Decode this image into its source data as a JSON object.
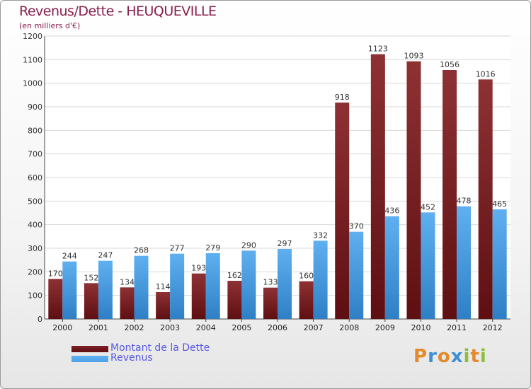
{
  "colors": {
    "dette": "#7d2226",
    "revenus": "#4ea2e6",
    "title": "#8a1f4d",
    "legend_text": "#5a5ae6"
  },
  "logo": {
    "text": "Proxiti",
    "letter_colors": [
      "#e58a2b",
      "#3f8fd4",
      "#e58a2b",
      "#3f8fd4",
      "#8dbd3d",
      "#e58a2b",
      "#8dbd3d"
    ]
  },
  "chart_data": {
    "type": "bar",
    "title": "Revenus/Dette - HEUQUEVILLE",
    "subtitle": "(en milliers d'€)",
    "xlabel": "",
    "ylabel": "",
    "ylim": [
      0,
      1200
    ],
    "yticks": [
      0,
      100,
      200,
      300,
      400,
      500,
      600,
      700,
      800,
      900,
      1000,
      1100,
      1200
    ],
    "grid": true,
    "legend_position": "bottom-left",
    "categories": [
      "2000",
      "2001",
      "2002",
      "2003",
      "2004",
      "2005",
      "2006",
      "2007",
      "2008",
      "2009",
      "2010",
      "2011",
      "2012"
    ],
    "series": [
      {
        "name": "Montant de la Dette",
        "values": [
          170,
          152,
          134,
          114,
          193,
          162,
          133,
          160,
          918,
          1123,
          1093,
          1056,
          1016
        ]
      },
      {
        "name": "Revenus",
        "values": [
          244,
          247,
          268,
          277,
          279,
          290,
          297,
          332,
          370,
          436,
          452,
          478,
          465
        ]
      }
    ]
  }
}
